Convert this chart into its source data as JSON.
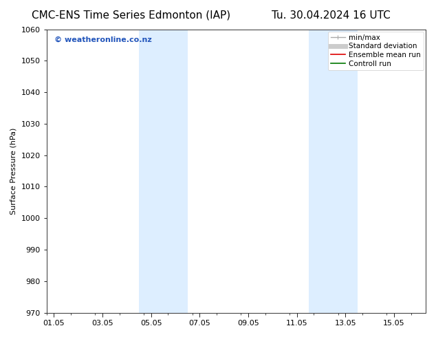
{
  "title_left": "CMC-ENS Time Series Edmonton (IAP)",
  "title_right": "Tu. 30.04.2024 16 UTC",
  "ylabel": "Surface Pressure (hPa)",
  "ylim": [
    970,
    1060
  ],
  "yticks": [
    970,
    980,
    990,
    1000,
    1010,
    1020,
    1030,
    1040,
    1050,
    1060
  ],
  "xtick_labels": [
    "01.05",
    "03.05",
    "05.05",
    "07.05",
    "09.05",
    "11.05",
    "13.05",
    "15.05"
  ],
  "xtick_positions": [
    0,
    2,
    4,
    6,
    8,
    10,
    12,
    14
  ],
  "xlim": [
    -0.3,
    15.3
  ],
  "shaded_bands": [
    {
      "x_start": 3.5,
      "x_end": 5.5
    },
    {
      "x_start": 10.5,
      "x_end": 12.5
    }
  ],
  "shaded_color": "#ddeeff",
  "background_color": "#ffffff",
  "plot_bg_color": "#ffffff",
  "watermark_text": "© weatheronline.co.nz",
  "watermark_color": "#2255bb",
  "watermark_fontsize": 8,
  "legend_items": [
    {
      "label": "min/max",
      "color": "#aaaaaa",
      "lw": 1.0
    },
    {
      "label": "Standard deviation",
      "color": "#cccccc",
      "lw": 5
    },
    {
      "label": "Ensemble mean run",
      "color": "#dd0000",
      "lw": 1.2
    },
    {
      "label": "Controll run",
      "color": "#007700",
      "lw": 1.2
    }
  ],
  "title_fontsize": 11,
  "axis_label_fontsize": 8,
  "tick_fontsize": 8,
  "legend_fontsize": 7.5
}
